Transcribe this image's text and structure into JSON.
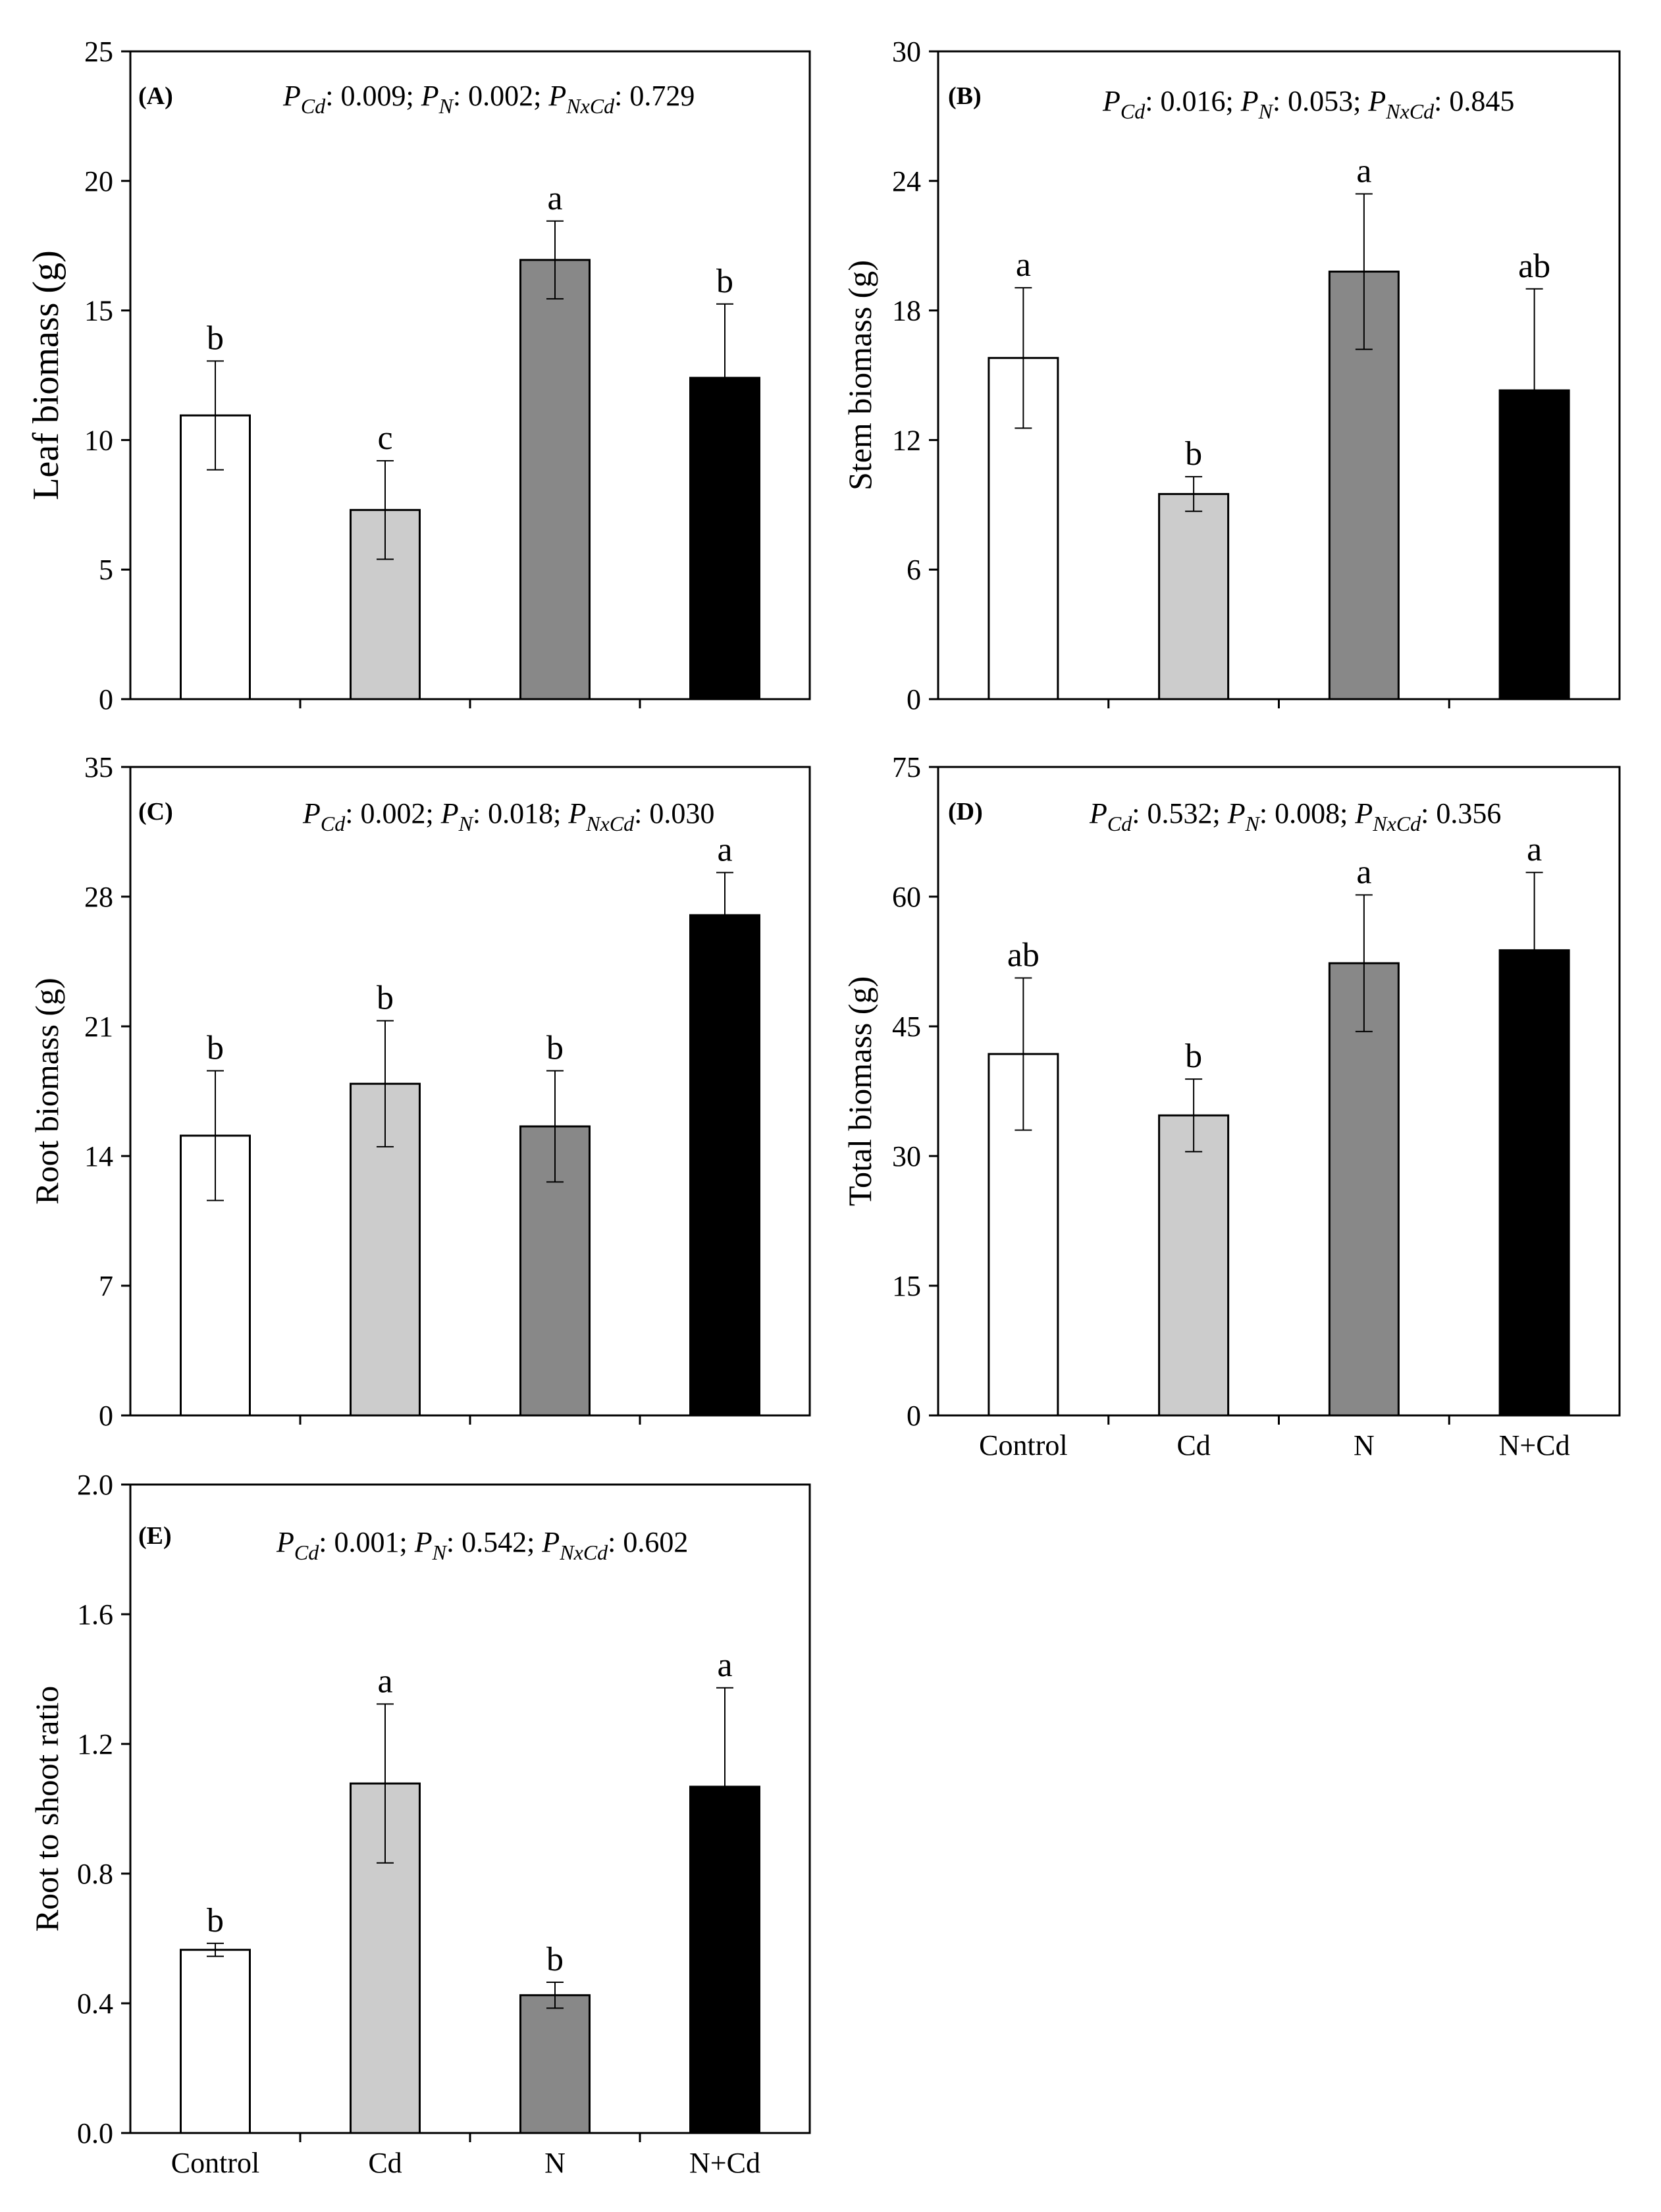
{
  "colors": {
    "Control": "#ffffff",
    "Cd": "#cccccc",
    "N": "#888888",
    "N+Cd": "#000000"
  },
  "chart_data": [
    {
      "panel": "(A)",
      "type": "bar",
      "ylabel": "Leaf biomass (g)",
      "ylim": [
        0,
        25
      ],
      "yticks": [
        "0",
        "5",
        "10",
        "15",
        "20",
        "25"
      ],
      "stats": {
        "p_cd": "0.009",
        "p_n": "0.002",
        "p_nxcd": "0.729"
      },
      "categories": [
        "Control",
        "Cd",
        "N",
        "N+Cd"
      ],
      "values": [
        10.95,
        7.3,
        16.95,
        12.4
      ],
      "errors": [
        2.1,
        1.9,
        1.5,
        2.85
      ],
      "letters": [
        "b",
        "c",
        "a",
        "b"
      ],
      "show_xlabels": false
    },
    {
      "panel": "(B)",
      "type": "bar",
      "ylabel": "Stem biomass (g)",
      "ylim": [
        0,
        30
      ],
      "yticks": [
        "0",
        "6",
        "12",
        "18",
        "24",
        "30"
      ],
      "stats": {
        "p_cd": "0.016",
        "p_n": "0.053",
        "p_nxcd": "0.845"
      },
      "categories": [
        "Control",
        "Cd",
        "N",
        "N+Cd"
      ],
      "values": [
        15.8,
        9.5,
        19.8,
        14.3
      ],
      "errors": [
        3.25,
        0.8,
        3.6,
        4.7
      ],
      "letters": [
        "a",
        "b",
        "a",
        "ab"
      ],
      "show_xlabels": false
    },
    {
      "panel": "(C)",
      "type": "bar",
      "ylabel": "Root biomass (g)",
      "ylim": [
        0,
        35
      ],
      "yticks": [
        "0",
        "7",
        "14",
        "21",
        "28",
        "35"
      ],
      "stats": {
        "p_cd": "0.002",
        "p_n": "0.018",
        "p_nxcd": "0.030"
      },
      "categories": [
        "Control",
        "Cd",
        "N",
        "N+Cd"
      ],
      "values": [
        15.1,
        17.9,
        15.6,
        27.0
      ],
      "errors": [
        3.5,
        3.4,
        3.0,
        2.3
      ],
      "letters": [
        "b",
        "b",
        "b",
        "a"
      ],
      "show_xlabels": false
    },
    {
      "panel": "(D)",
      "type": "bar",
      "ylabel": "Total biomass (g)",
      "ylim": [
        0,
        75
      ],
      "yticks": [
        "0",
        "15",
        "30",
        "45",
        "60",
        "75"
      ],
      "stats": {
        "p_cd": "0.532",
        "p_n": "0.008",
        "p_nxcd": "0.356"
      },
      "categories": [
        "Control",
        "Cd",
        "N",
        "N+Cd"
      ],
      "values": [
        41.8,
        34.7,
        52.3,
        53.8
      ],
      "errors": [
        8.8,
        4.2,
        7.9,
        9.0
      ],
      "letters": [
        "ab",
        "b",
        "a",
        "a"
      ],
      "show_xlabels": true
    },
    {
      "panel": "(E)",
      "type": "bar",
      "ylabel": "Root to shoot ratio",
      "ylim": [
        0,
        2.0
      ],
      "yticks": [
        "0.0",
        "0.4",
        "0.8",
        "1.2",
        "1.6",
        "2.0"
      ],
      "stats": {
        "p_cd": "0.001",
        "p_n": "0.542",
        "p_nxcd": "0.602"
      },
      "categories": [
        "Control",
        "Cd",
        "N",
        "N+Cd"
      ],
      "values": [
        0.565,
        1.078,
        0.425,
        1.068
      ],
      "errors": [
        0.02,
        0.245,
        0.04,
        0.305
      ],
      "letters": [
        "b",
        "a",
        "b",
        "a"
      ],
      "show_xlabels": true
    }
  ]
}
